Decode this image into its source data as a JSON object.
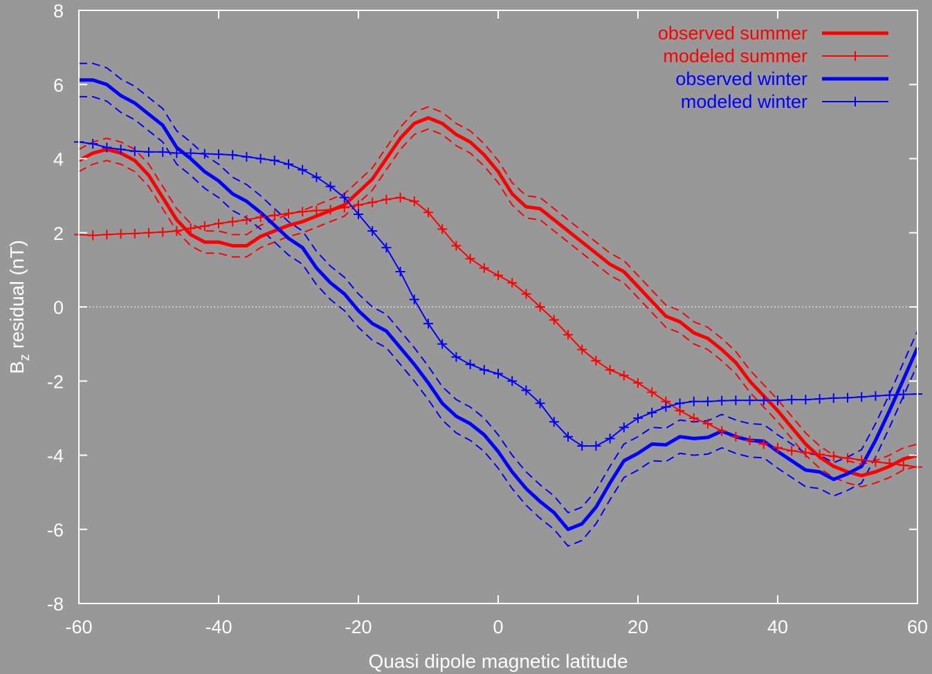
{
  "chart_data": {
    "type": "line",
    "title": "",
    "xlabel": "Quasi dipole magnetic latitude",
    "ylabel": {
      "base": "B",
      "subscript": "z",
      "rest": " residual (nT)"
    },
    "xlim": [
      -60,
      60
    ],
    "ylim": [
      -8,
      8
    ],
    "x_ticks": [
      -60,
      -40,
      -20,
      0,
      20,
      40,
      60
    ],
    "x_tick_labels": [
      "-60",
      "-40",
      "-20",
      "0",
      "20",
      "40",
      "60"
    ],
    "y_ticks": [
      -8,
      -6,
      -4,
      -2,
      0,
      2,
      4,
      6,
      8
    ],
    "y_tick_labels": [
      "-8",
      "-6",
      "-4",
      "-2",
      "0",
      "2",
      "4",
      "6",
      "8"
    ],
    "zero_line": true,
    "legend_position": "top-right",
    "colors": {
      "summer": "#ff0000",
      "winter": "#0000ff",
      "zero_line": "#ffffff",
      "frame": "#ffffff",
      "background": "#989898"
    },
    "x": [
      -60,
      -58,
      -56,
      -54,
      -52,
      -50,
      -48,
      -46,
      -44,
      -42,
      -40,
      -38,
      -36,
      -34,
      -32,
      -30,
      -28,
      -26,
      -24,
      -22,
      -20,
      -18,
      -16,
      -14,
      -12,
      -10,
      -8,
      -6,
      -4,
      -2,
      0,
      2,
      4,
      6,
      8,
      10,
      12,
      14,
      16,
      18,
      20,
      22,
      24,
      26,
      28,
      30,
      32,
      34,
      36,
      38,
      40,
      42,
      44,
      46,
      48,
      50,
      52,
      54,
      56,
      58,
      60
    ],
    "series": [
      {
        "name": "observed summer",
        "label": "observed summer",
        "id": "observed-summer",
        "color": "#ff0000",
        "style": "solid-thick",
        "markers": false,
        "uncertainty_band": 0.3,
        "values": [
          3.95,
          4.15,
          4.25,
          4.15,
          3.95,
          3.55,
          2.95,
          2.35,
          1.95,
          1.75,
          1.75,
          1.65,
          1.65,
          1.9,
          2.05,
          2.2,
          2.3,
          2.45,
          2.6,
          2.75,
          3.1,
          3.45,
          4.0,
          4.55,
          4.95,
          5.1,
          4.95,
          4.65,
          4.45,
          4.1,
          3.65,
          3.05,
          2.7,
          2.65,
          2.35,
          2.05,
          1.75,
          1.45,
          1.15,
          0.95,
          0.55,
          0.15,
          -0.25,
          -0.4,
          -0.7,
          -0.85,
          -1.15,
          -1.5,
          -2.0,
          -2.4,
          -2.8,
          -3.25,
          -3.7,
          -4.05,
          -4.3,
          -4.45,
          -4.55,
          -4.45,
          -4.3,
          -4.1,
          -4.0
        ]
      },
      {
        "name": "modeled summer",
        "label": "modeled summer",
        "id": "modeled-summer",
        "color": "#ff0000",
        "style": "thin-plus",
        "markers": true,
        "values": [
          1.95,
          1.93,
          1.95,
          1.97,
          1.98,
          2.0,
          2.02,
          2.05,
          2.12,
          2.18,
          2.25,
          2.3,
          2.35,
          2.42,
          2.47,
          2.52,
          2.57,
          2.6,
          2.62,
          2.68,
          2.75,
          2.82,
          2.9,
          2.95,
          2.85,
          2.55,
          2.1,
          1.65,
          1.3,
          1.05,
          0.85,
          0.65,
          0.35,
          0.0,
          -0.35,
          -0.75,
          -1.15,
          -1.45,
          -1.7,
          -1.85,
          -2.05,
          -2.3,
          -2.55,
          -2.8,
          -3.0,
          -3.15,
          -3.35,
          -3.5,
          -3.6,
          -3.7,
          -3.8,
          -3.88,
          -3.93,
          -3.98,
          -4.03,
          -4.08,
          -4.13,
          -4.18,
          -4.22,
          -4.27,
          -4.32
        ]
      },
      {
        "name": "observed winter",
        "label": "observed winter",
        "id": "observed-winter",
        "color": "#0000ff",
        "style": "solid-thick",
        "markers": false,
        "uncertainty_band": 0.45,
        "values": [
          6.12,
          6.12,
          6.0,
          5.7,
          5.5,
          5.2,
          4.9,
          4.3,
          4.0,
          3.65,
          3.4,
          3.05,
          2.85,
          2.55,
          2.2,
          1.85,
          1.6,
          1.05,
          0.65,
          0.35,
          -0.1,
          -0.45,
          -0.65,
          -1.1,
          -1.55,
          -2.05,
          -2.6,
          -2.95,
          -3.15,
          -3.45,
          -3.9,
          -4.45,
          -4.9,
          -5.25,
          -5.55,
          -6.0,
          -5.85,
          -5.4,
          -4.75,
          -4.15,
          -3.95,
          -3.7,
          -3.72,
          -3.5,
          -3.55,
          -3.52,
          -3.35,
          -3.5,
          -3.6,
          -3.62,
          -3.9,
          -4.15,
          -4.4,
          -4.45,
          -4.65,
          -4.5,
          -4.3,
          -3.6,
          -2.8,
          -1.95,
          -1.1
        ]
      },
      {
        "name": "modeled winter",
        "label": "modeled winter",
        "id": "modeled-winter",
        "color": "#0000ff",
        "style": "thin-plus",
        "markers": true,
        "values": [
          4.45,
          4.4,
          4.3,
          4.25,
          4.2,
          4.18,
          4.18,
          4.15,
          4.15,
          4.13,
          4.12,
          4.1,
          4.05,
          4.0,
          3.95,
          3.85,
          3.7,
          3.5,
          3.25,
          2.95,
          2.5,
          2.05,
          1.6,
          0.95,
          0.2,
          -0.45,
          -1.0,
          -1.35,
          -1.55,
          -1.7,
          -1.8,
          -2.0,
          -2.25,
          -2.6,
          -3.1,
          -3.5,
          -3.75,
          -3.75,
          -3.55,
          -3.25,
          -3.0,
          -2.85,
          -2.7,
          -2.6,
          -2.55,
          -2.55,
          -2.53,
          -2.52,
          -2.52,
          -2.52,
          -2.52,
          -2.5,
          -2.5,
          -2.48,
          -2.46,
          -2.45,
          -2.43,
          -2.4,
          -2.38,
          -2.36,
          -2.35
        ]
      }
    ]
  }
}
